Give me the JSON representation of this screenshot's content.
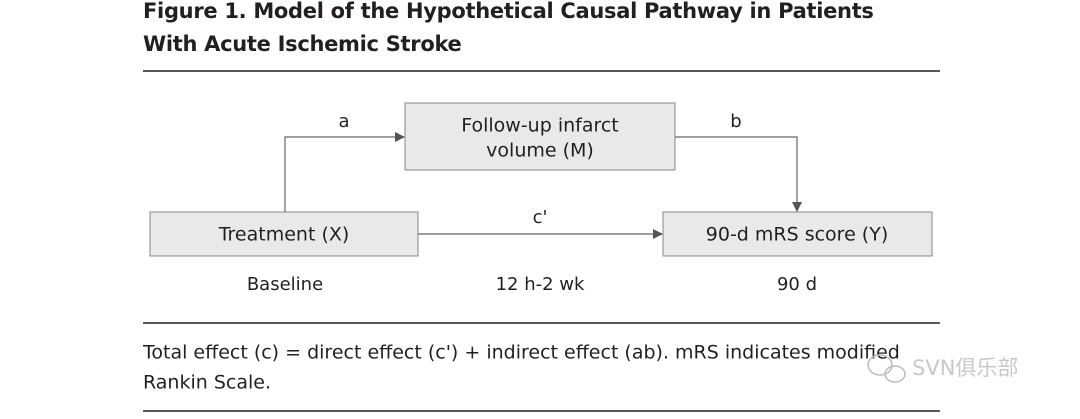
{
  "header": {
    "title_lines": [
      "Figure 1. Model of the Hypothetical Causal Pathway in Patients",
      "With Acute Ischemic Stroke"
    ]
  },
  "nodes": [
    {
      "label_lines": [
        "Follow-up infarct",
        "volume (M)"
      ]
    },
    {
      "label_lines": [
        "Treatment (X)"
      ]
    },
    {
      "label_lines": [
        "90-d mRS score (Y)"
      ]
    }
  ],
  "edges": [
    {
      "label": "a"
    },
    {
      "label": "b"
    },
    {
      "label": "c'"
    }
  ],
  "timeline": [
    "Baseline",
    "12 h-2 wk",
    "90 d"
  ],
  "caption_lines": [
    "Total effect (c) = direct effect (c') + indirect effect (ab). mRS indicates modified",
    "Rankin Scale."
  ],
  "watermark": {
    "text": "SVN俱乐部"
  }
}
